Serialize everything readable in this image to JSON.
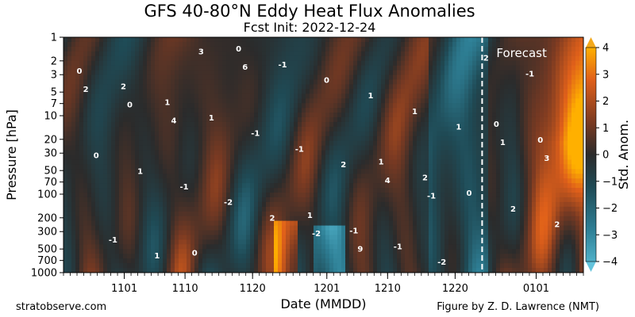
{
  "chart_data": {
    "type": "heatmap",
    "title": "GFS 40-80°N Eddy Heat Flux Anomalies",
    "subtitle": "Fcst Init: 2022-12-24",
    "xlabel": "Date (MMDD)",
    "ylabel": "Pressure [hPa]",
    "x_ticks": [
      "1101",
      "1110",
      "1120",
      "1201",
      "1210",
      "1220",
      "0101"
    ],
    "y_ticks": [
      1,
      2,
      3,
      5,
      7,
      10,
      20,
      30,
      50,
      70,
      100,
      200,
      300,
      500,
      700,
      1000
    ],
    "y_scale": "log",
    "y_inverted": true,
    "ylim": [
      1,
      1000
    ],
    "colorbar": {
      "label": "Std. Anom.",
      "range": [
        -4,
        4
      ],
      "ticks": [
        4,
        3,
        2,
        1,
        0,
        -1,
        -2,
        -3,
        -4
      ],
      "tick_labels": [
        "4",
        "3",
        "2",
        "1",
        "0",
        "−1",
        "−2",
        "−3",
        "−4"
      ],
      "cmap_low": "#3d9db5",
      "cmap_mid": "#2b2b2b",
      "cmap_high": "#ffb000"
    },
    "forecast_label": "Forecast",
    "forecast_init_date": "2022-12-24",
    "time_range": [
      "2022-10-23",
      "2023-01-08"
    ],
    "contour_labels": [
      "0",
      "1",
      "0",
      "0",
      "1",
      "2",
      "2",
      "0",
      "0",
      "-1",
      "1",
      "0",
      "-1",
      "0",
      "-1",
      "1",
      "2",
      "0",
      "1",
      "-2",
      "-1",
      "2",
      "1",
      "-1",
      "2",
      "-1",
      "-1",
      "1",
      "-2",
      "-1",
      "2",
      "1",
      "1",
      "2",
      "2",
      "4",
      "3",
      "1",
      "-2",
      "0",
      "-1",
      "6",
      "3",
      "9",
      "4"
    ]
  },
  "footer": {
    "source": "stratobserve.com",
    "credit": "Figure by Z. D. Lawrence (NMT)"
  }
}
